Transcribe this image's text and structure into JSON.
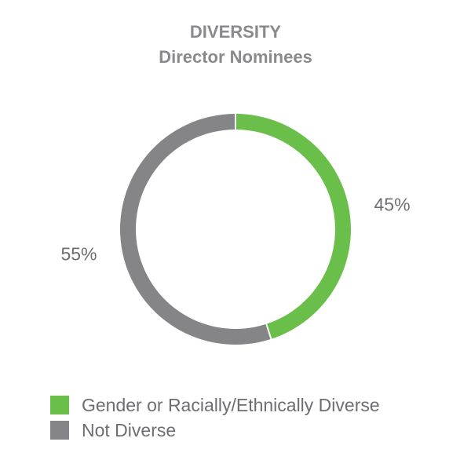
{
  "chart_data": {
    "type": "pie",
    "title": "DIVERSITY",
    "subtitle": "Director Nominees",
    "categories": [
      "Gender or Racially/Ethnically Diverse",
      "Not Diverse"
    ],
    "values": [
      45,
      55
    ],
    "value_labels": [
      "45%",
      "55%"
    ],
    "colors": [
      "#6abf4b",
      "#858588"
    ],
    "legend_position": "bottom-left",
    "grid": false
  }
}
